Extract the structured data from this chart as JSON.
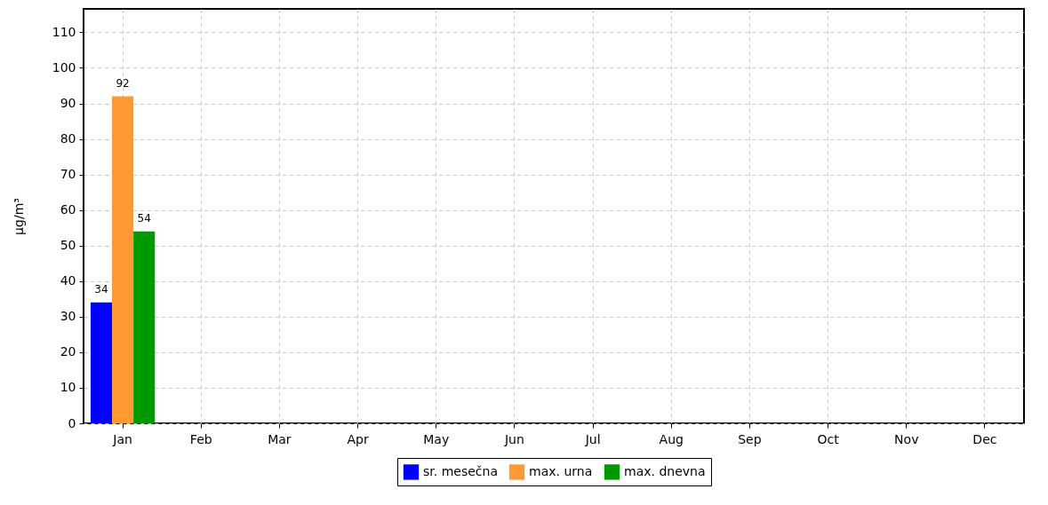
{
  "chart_data": {
    "type": "bar",
    "ylabel": "µg/m³",
    "categories": [
      "Jan",
      "Feb",
      "Mar",
      "Apr",
      "May",
      "Jun",
      "Jul",
      "Aug",
      "Sep",
      "Oct",
      "Nov",
      "Dec"
    ],
    "series": [
      {
        "name": "sr. mesečna",
        "color": "#0000ff",
        "values": [
          34,
          null,
          null,
          null,
          null,
          null,
          null,
          null,
          null,
          null,
          null,
          null
        ]
      },
      {
        "name": "max. urna",
        "color": "#ff9933",
        "values": [
          92,
          null,
          null,
          null,
          null,
          null,
          null,
          null,
          null,
          null,
          null,
          null
        ]
      },
      {
        "name": "max. dnevna",
        "color": "#009900",
        "values": [
          54,
          null,
          null,
          null,
          null,
          null,
          null,
          null,
          null,
          null,
          null,
          null
        ]
      }
    ],
    "ylim": [
      0,
      116.6
    ],
    "yticks": [
      0,
      10,
      20,
      30,
      40,
      50,
      60,
      70,
      80,
      90,
      100,
      110
    ],
    "grid": true,
    "legend": "bottom",
    "data_labels": true
  }
}
